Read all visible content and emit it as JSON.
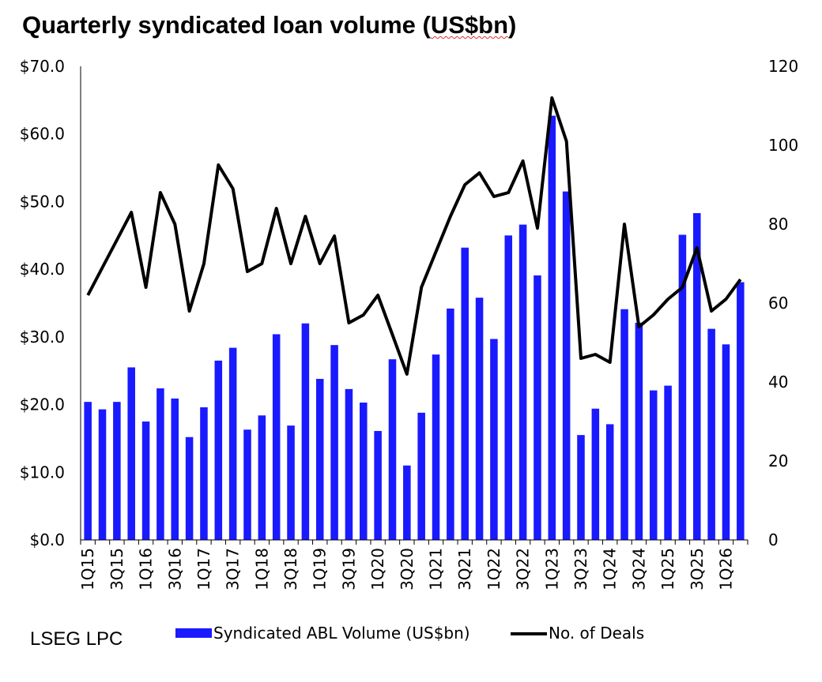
{
  "title_main": "Quarterly syndicated loan volume (",
  "title_unit": "US$bn",
  "title_close": ")",
  "source": "LSEG LPC",
  "colors": {
    "bar": "#1a1aff",
    "line": "#000000"
  },
  "chart_data": {
    "type": "bar+line",
    "title": "Quarterly syndicated loan volume (US$bn)",
    "categories": [
      "1Q15",
      "2Q15",
      "3Q15",
      "4Q15",
      "1Q16",
      "2Q16",
      "3Q16",
      "4Q16",
      "1Q17",
      "2Q17",
      "3Q17",
      "4Q17",
      "1Q18",
      "2Q18",
      "3Q18",
      "4Q18",
      "1Q19",
      "2Q19",
      "3Q19",
      "4Q19",
      "1Q20",
      "2Q20",
      "3Q20",
      "4Q20",
      "1Q21",
      "2Q21",
      "3Q21",
      "4Q21",
      "1Q22",
      "2Q22",
      "3Q22",
      "4Q22",
      "1Q23",
      "2Q23",
      "3Q23",
      "4Q23",
      "1Q24",
      "2Q24",
      "3Q24",
      "4Q24",
      "1Q25",
      "2Q25",
      "3Q25",
      "4Q25",
      "1Q26",
      "2Q26"
    ],
    "x_tick_labels": [
      "1Q15",
      "3Q15",
      "1Q16",
      "3Q16",
      "1Q17",
      "3Q17",
      "1Q18",
      "3Q18",
      "1Q19",
      "3Q19",
      "1Q20",
      "3Q20",
      "1Q21",
      "3Q21",
      "1Q22",
      "3Q22",
      "1Q23",
      "3Q23",
      "1Q24",
      "3Q24",
      "1Q25",
      "3Q25",
      "1Q26"
    ],
    "y_left": {
      "min": 0,
      "max": 70,
      "ticks": [
        "$0.0",
        "$10.0",
        "$20.0",
        "$30.0",
        "$40.0",
        "$50.0",
        "$60.0",
        "$70.0"
      ]
    },
    "y_right": {
      "min": 0,
      "max": 120,
      "ticks": [
        "0",
        "20",
        "40",
        "60",
        "80",
        "100",
        "120"
      ]
    },
    "series": [
      {
        "name": "Syndicated ABL Volume (US$bn)",
        "type": "bar",
        "axis": "left",
        "values": [
          20.4,
          19.3,
          20.4,
          25.5,
          17.5,
          22.4,
          20.9,
          15.2,
          19.6,
          26.5,
          28.4,
          16.3,
          18.4,
          30.4,
          16.9,
          32.0,
          23.8,
          28.8,
          22.3,
          20.3,
          16.1,
          26.7,
          11.0,
          18.8,
          27.4,
          34.2,
          43.2,
          35.8,
          29.7,
          45.0,
          46.6,
          39.1,
          62.7,
          51.5,
          15.5,
          19.4,
          17.1,
          34.1,
          32.1,
          22.1,
          22.8,
          45.1,
          48.3,
          31.2,
          28.9,
          38.1
        ]
      },
      {
        "name": "No. of Deals",
        "type": "line",
        "axis": "right",
        "values": [
          62,
          69,
          76,
          83,
          64,
          88,
          80,
          58,
          70,
          95,
          89,
          68,
          70,
          84,
          70,
          82,
          70,
          77,
          55,
          57,
          62,
          52,
          42,
          64,
          73,
          82,
          90,
          93,
          87,
          88,
          96,
          79,
          112,
          101,
          46,
          47,
          45,
          80,
          54,
          57,
          61,
          64,
          74,
          58,
          61,
          66
        ]
      }
    ],
    "legend": {
      "position": "bottom"
    }
  }
}
